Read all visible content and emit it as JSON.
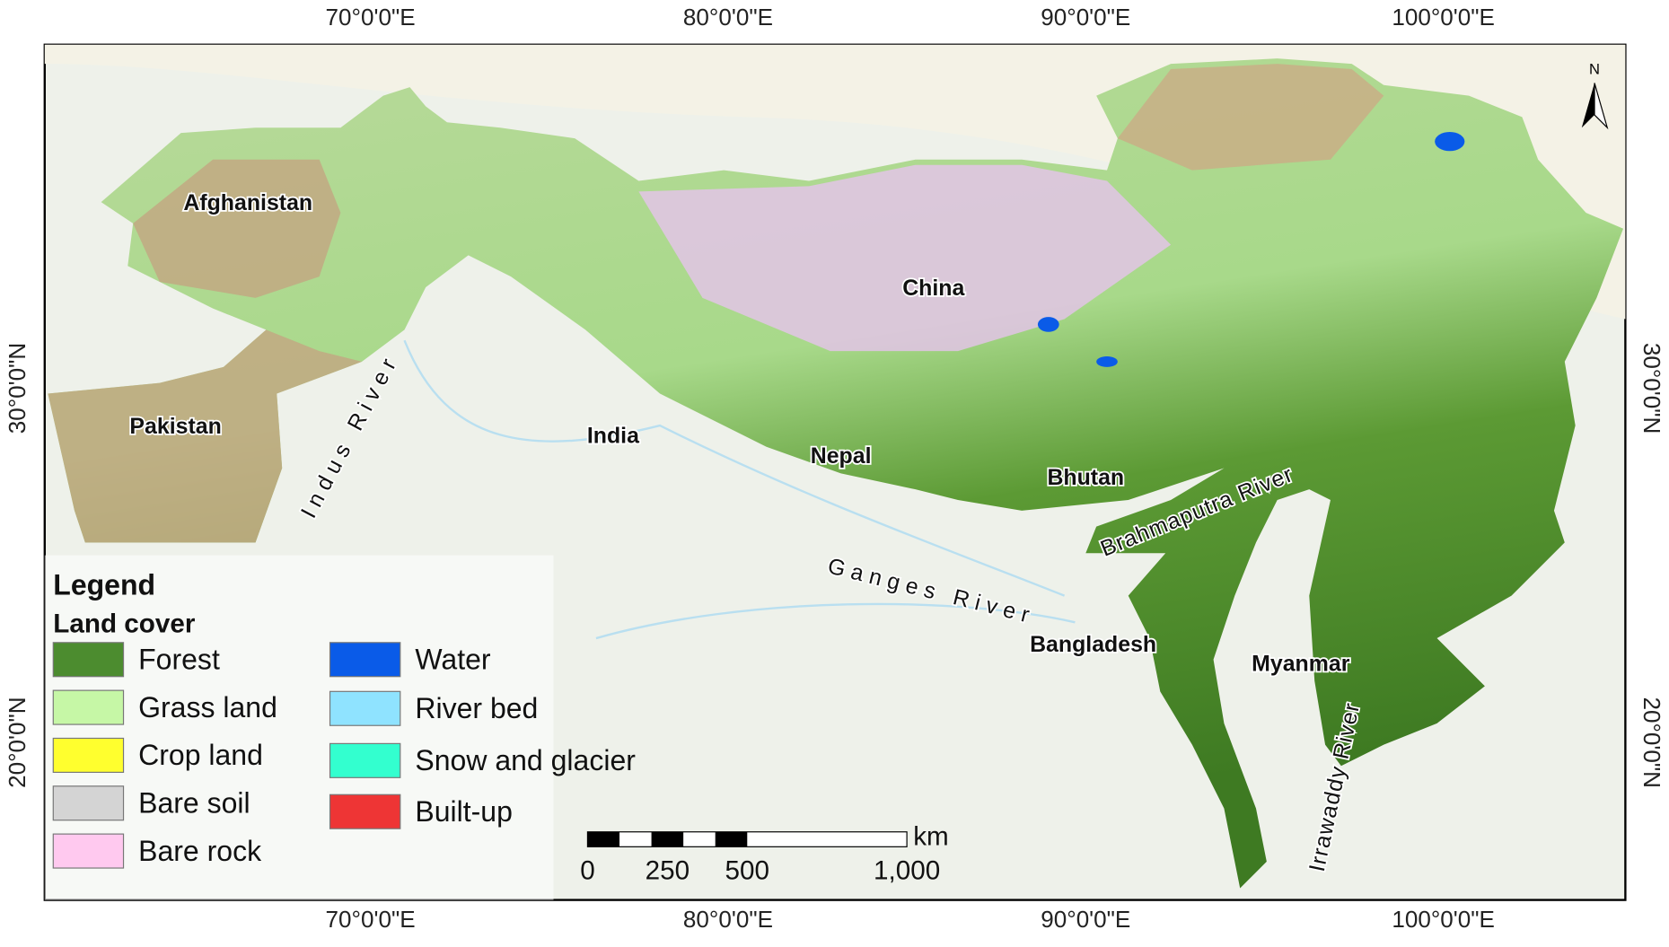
{
  "graticule": {
    "longitude_labels": [
      "70°0'0\"E",
      "80°0'0\"E",
      "90°0'0\"E",
      "100°0'0\"E"
    ],
    "latitude_labels": [
      "30°0'0\"N",
      "20°0'0\"N"
    ]
  },
  "countries": [
    "Afghanistan",
    "Pakistan",
    "India",
    "China",
    "Nepal",
    "Bhutan",
    "Bangladesh",
    "Myanmar"
  ],
  "rivers": [
    "Indus River",
    "Ganges River",
    "Brahmaputra River",
    "Irrawaddy River"
  ],
  "legend": {
    "title": "Legend",
    "subtitle": "Land cover",
    "items": [
      {
        "label": "Forest",
        "color": "#4c8c2f"
      },
      {
        "label": "Grass land",
        "color": "#c6f7a6"
      },
      {
        "label": "Crop land",
        "color": "#ffff2e"
      },
      {
        "label": "Bare soil",
        "color": "#d4d4d4"
      },
      {
        "label": "Bare rock",
        "color": "#ffc9ef"
      },
      {
        "label": "Water",
        "color": "#0a5be8"
      },
      {
        "label": "River bed",
        "color": "#8fe3ff"
      },
      {
        "label": "Snow and glacier",
        "color": "#33ffcf"
      },
      {
        "label": "Built-up",
        "color": "#ee3535"
      }
    ]
  },
  "scale_bar": {
    "labels": [
      "0",
      "250",
      "500",
      "1,000"
    ],
    "unit": "km"
  },
  "north_arrow": "N"
}
